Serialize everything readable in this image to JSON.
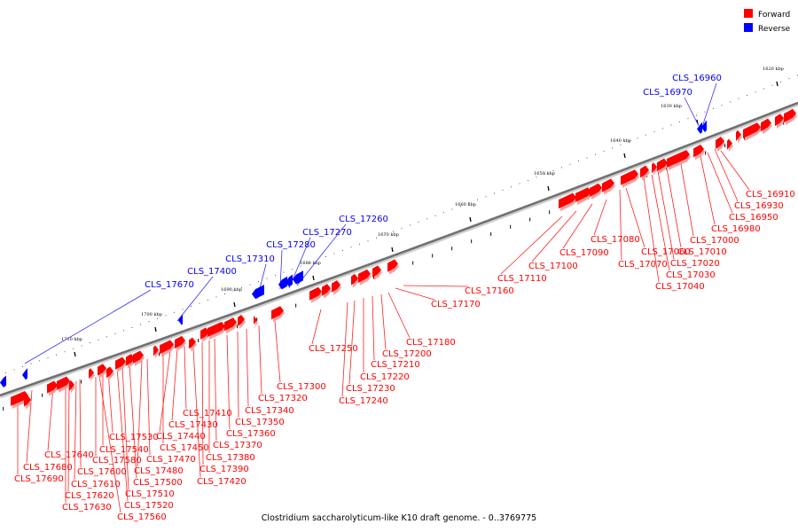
{
  "caption": "Clostridium saccharolyticum-like K10 draft genome. - 0..3769775",
  "legend": [
    {
      "label": "Forward",
      "color": "#ff0000"
    },
    {
      "label": "Reverse",
      "color": "#0000ff"
    }
  ],
  "kbp_ticks": [
    "1620 kbp",
    "1630 kbp",
    "1640 kbp",
    "1650 kbp",
    "1660 kbp",
    "1670 kbp",
    "1680 kbp",
    "1690 kbp",
    "1700 kbp",
    "1710 kbp"
  ],
  "reverse_labels": [
    "CLS_16960",
    "CLS_16970",
    "CLS_17260",
    "CLS_17270",
    "CLS_17280",
    "CLS_17310",
    "CLS_17400",
    "CLS_17670"
  ],
  "forward_labels": [
    "CLS_16910",
    "CLS_16930",
    "CLS_16950",
    "CLS_16980",
    "CLS_17000",
    "CLS_17010",
    "CLS_17020",
    "CLS_17030",
    "CLS_17040",
    "CLS_17060",
    "CLS_17070",
    "CLS_17080",
    "CLS_17090",
    "CLS_17100",
    "CLS_17110",
    "CLS_17160",
    "CLS_17170",
    "CLS_17180",
    "CLS_17200",
    "CLS_17210",
    "CLS_17220",
    "CLS_17230",
    "CLS_17240",
    "CLS_17250",
    "CLS_17300",
    "CLS_17320",
    "CLS_17340",
    "CLS_17350",
    "CLS_17360",
    "CLS_17370",
    "CLS_17380",
    "CLS_17390",
    "CLS_17410",
    "CLS_17420",
    "CLS_17430",
    "CLS_17440",
    "CLS_17450",
    "CLS_17470",
    "CLS_17480",
    "CLS_17500",
    "CLS_17510",
    "CLS_17520",
    "CLS_17530",
    "CLS_17540",
    "CLS_17560",
    "CLS_17580",
    "CLS_17600",
    "CLS_17610",
    "CLS_17620",
    "CLS_17630",
    "CLS_17640",
    "CLS_17680",
    "CLS_17690"
  ],
  "colors": {
    "forward": "#ff0000",
    "reverse": "#0000ff",
    "backbone": "#808080"
  }
}
